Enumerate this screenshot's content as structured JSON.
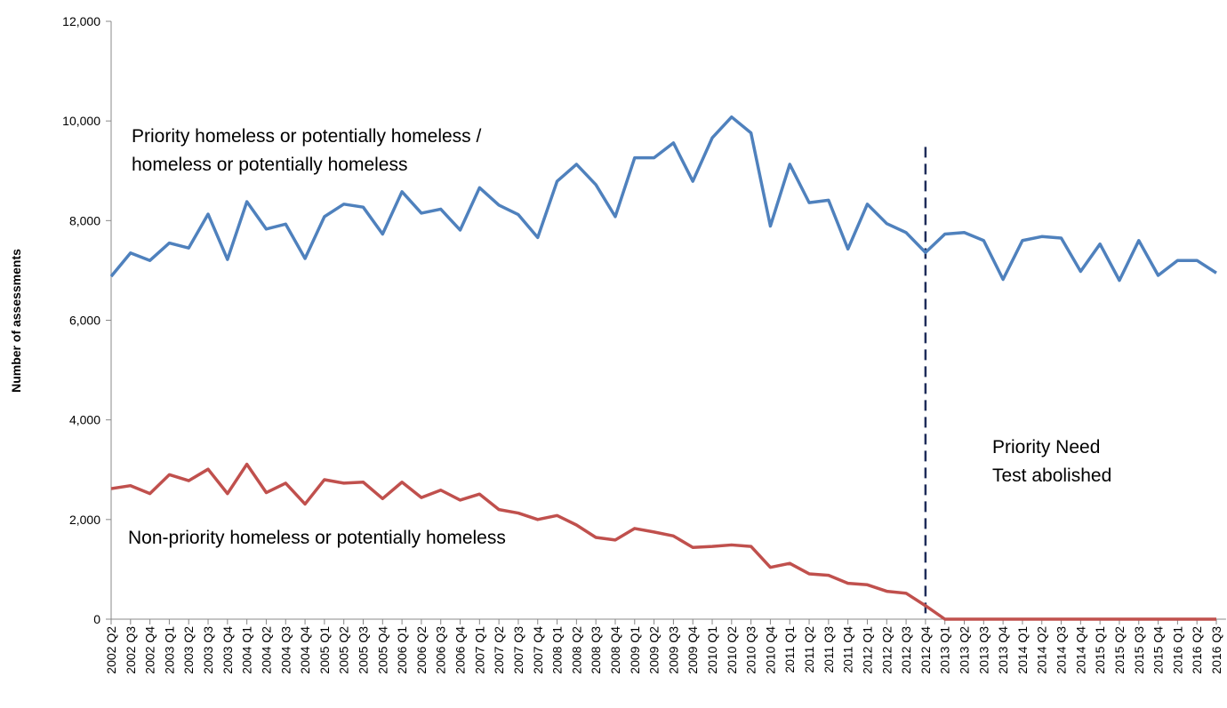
{
  "chart_data": {
    "type": "line",
    "y_label": "Number of assessments",
    "categories": [
      "2002 Q2",
      "2002 Q3",
      "2002 Q4",
      "2003 Q1",
      "2003 Q2",
      "2003 Q3",
      "2003 Q4",
      "2004 Q1",
      "2004 Q2",
      "2004 Q3",
      "2004 Q4",
      "2005 Q1",
      "2005 Q2",
      "2005 Q3",
      "2005 Q4",
      "2006 Q1",
      "2006 Q2",
      "2006 Q3",
      "2006 Q4",
      "2007 Q1",
      "2007 Q2",
      "2007 Q3",
      "2007 Q4",
      "2008 Q1",
      "2008 Q2",
      "2008 Q3",
      "2008 Q4",
      "2009 Q1",
      "2009 Q2",
      "2009 Q3",
      "2009 Q4",
      "2010 Q1",
      "2010 Q2",
      "2010 Q3",
      "2010 Q4",
      "2011 Q1",
      "2011 Q2",
      "2011 Q3",
      "2011 Q4",
      "2012 Q1",
      "2012 Q2",
      "2012 Q3",
      "2012 Q4",
      "2013 Q1",
      "2013 Q2",
      "2013 Q3",
      "2013 Q4",
      "2014 Q1",
      "2014 Q2",
      "2014 Q3",
      "2014 Q4",
      "2015 Q1",
      "2015 Q2",
      "2015 Q3",
      "2015 Q4",
      "2016 Q1",
      "2016 Q2",
      "2016 Q3"
    ],
    "series": [
      {
        "color": "#4f81bd",
        "values": [
          6880,
          7350,
          7200,
          7550,
          7450,
          8130,
          7220,
          8380,
          7830,
          7930,
          7240,
          8080,
          8330,
          8270,
          7730,
          8580,
          8150,
          8230,
          7810,
          8660,
          8310,
          8120,
          7660,
          8790,
          9130,
          8720,
          8080,
          9260,
          9260,
          9560,
          8790,
          9660,
          10080,
          9760,
          7890,
          9130,
          8360,
          8410,
          7430,
          8330,
          7940,
          7760,
          7360,
          7730,
          7760,
          7600,
          6820,
          7600,
          7680,
          7650,
          6980,
          7530,
          6800,
          7600,
          6900,
          7200,
          7200,
          6950
        ]
      },
      {
        "color": "#c0504d",
        "values": [
          2620,
          2680,
          2520,
          2900,
          2780,
          3010,
          2520,
          3110,
          2540,
          2730,
          2310,
          2800,
          2730,
          2750,
          2420,
          2750,
          2440,
          2590,
          2390,
          2510,
          2200,
          2130,
          2000,
          2080,
          1890,
          1640,
          1590,
          1820,
          1750,
          1670,
          1440,
          1460,
          1490,
          1460,
          1040,
          1120,
          910,
          880,
          720,
          690,
          560,
          520,
          270,
          0,
          0,
          0,
          0,
          0,
          0,
          0,
          0,
          0,
          0,
          0,
          0,
          0,
          0,
          0
        ]
      }
    ],
    "ylim": [
      0,
      12000
    ],
    "yticks": [
      0,
      {
        "value": 2000,
        "label": "2,000"
      },
      {
        "value": 4000,
        "label": "4,000"
      },
      {
        "value": 6000,
        "label": "6,000"
      },
      {
        "value": 8000,
        "label": "8,000"
      },
      {
        "value": 10000,
        "label": "10,000"
      },
      {
        "value": 12000,
        "label": "12,000"
      }
    ],
    "vertical_line_at": "2012 Q4",
    "vertical_line_color": "#1f2d5a",
    "annotations": [
      {
        "lines": [
          "Priority homeless or potentially homeless /",
          "homeless or potentially homeless"
        ]
      },
      {
        "lines": [
          "Non-priority homeless or potentially homeless"
        ]
      },
      {
        "lines": [
          "Priority Need",
          "Test abolished"
        ]
      }
    ]
  }
}
